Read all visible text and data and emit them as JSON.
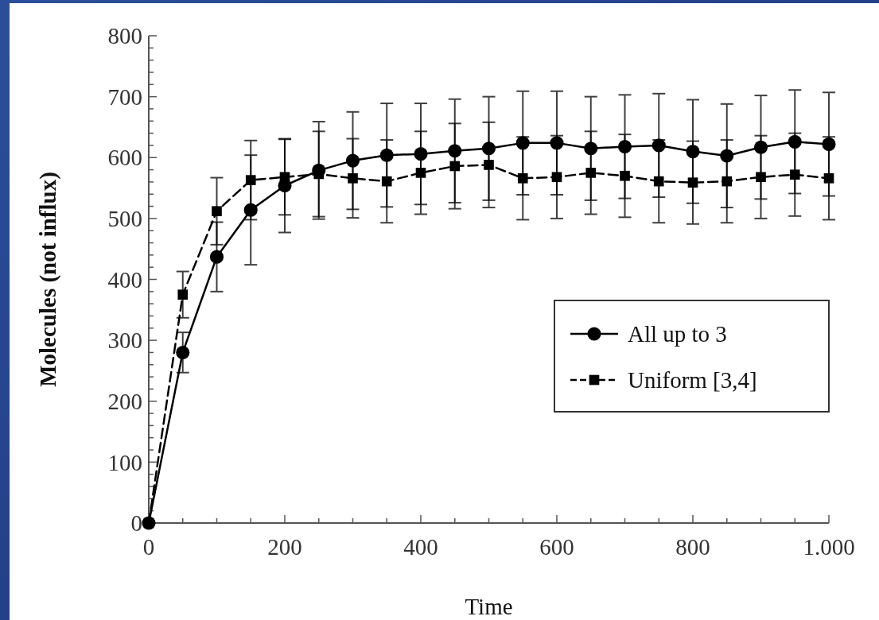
{
  "chart_data": {
    "type": "line",
    "xlabel": "Time",
    "ylabel": "Molecules (not influx)",
    "x": [
      0,
      50,
      100,
      150,
      200,
      250,
      300,
      350,
      400,
      450,
      500,
      550,
      600,
      650,
      700,
      750,
      800,
      850,
      900,
      950,
      1000
    ],
    "xlim": [
      0,
      1000
    ],
    "xticks": [
      0,
      {
        "value": 50,
        "label": null
      },
      {
        "value": 100,
        "label": null
      },
      {
        "value": 150,
        "label": null
      },
      200,
      {
        "value": 250,
        "label": null
      },
      {
        "value": 300,
        "label": null
      },
      {
        "value": 350,
        "label": null
      },
      400,
      {
        "value": 450,
        "label": null
      },
      {
        "value": 500,
        "label": null
      },
      {
        "value": 550,
        "label": null
      },
      600,
      {
        "value": 650,
        "label": null
      },
      {
        "value": 700,
        "label": null
      },
      {
        "value": 750,
        "label": null
      },
      800,
      {
        "value": 850,
        "label": null
      },
      {
        "value": 900,
        "label": null
      },
      {
        "value": 950,
        "label": null
      },
      {
        "value": 1000,
        "label": "1.000"
      }
    ],
    "ylim": [
      0,
      800
    ],
    "yticks": [
      0,
      {
        "value": 20,
        "label": null
      },
      {
        "value": 40,
        "label": null
      },
      {
        "value": 60,
        "label": null
      },
      {
        "value": 80,
        "label": null
      },
      100,
      {
        "value": 120,
        "label": null
      },
      {
        "value": 140,
        "label": null
      },
      {
        "value": 160,
        "label": null
      },
      {
        "value": 180,
        "label": null
      },
      200,
      {
        "value": 220,
        "label": null
      },
      {
        "value": 240,
        "label": null
      },
      {
        "value": 260,
        "label": null
      },
      {
        "value": 280,
        "label": null
      },
      300,
      {
        "value": 320,
        "label": null
      },
      {
        "value": 340,
        "label": null
      },
      {
        "value": 360,
        "label": null
      },
      {
        "value": 380,
        "label": null
      },
      400,
      {
        "value": 420,
        "label": null
      },
      {
        "value": 440,
        "label": null
      },
      {
        "value": 460,
        "label": null
      },
      {
        "value": 480,
        "label": null
      },
      500,
      {
        "value": 520,
        "label": null
      },
      {
        "value": 540,
        "label": null
      },
      {
        "value": 560,
        "label": null
      },
      {
        "value": 580,
        "label": null
      },
      600,
      {
        "value": 620,
        "label": null
      },
      {
        "value": 640,
        "label": null
      },
      {
        "value": 660,
        "label": null
      },
      {
        "value": 680,
        "label": null
      },
      700,
      {
        "value": 720,
        "label": null
      },
      {
        "value": 740,
        "label": null
      },
      {
        "value": 760,
        "label": null
      },
      {
        "value": 780,
        "label": null
      },
      800
    ],
    "legend": "bottom right",
    "series": [
      {
        "name": "All up to 3",
        "color": "#000000",
        "marker": "circle",
        "line_style": "solid",
        "values": [
          0,
          280,
          437,
          514,
          554,
          579,
          595,
          604,
          606,
          611,
          615,
          624,
          624,
          615,
          618,
          620,
          610,
          603,
          617,
          626,
          622
        ],
        "errors": [
          null,
          33,
          57,
          90,
          77,
          80,
          80,
          85,
          83,
          85,
          85,
          85,
          85,
          85,
          85,
          85,
          85,
          85,
          85,
          85,
          85
        ]
      },
      {
        "name": "Uniform [3,4]",
        "color": "#000000",
        "marker": "square",
        "line_style": "dashed",
        "values": [
          0,
          375,
          512,
          563,
          568,
          573,
          566,
          561,
          575,
          586,
          588,
          566,
          568,
          575,
          570,
          561,
          559,
          561,
          568,
          572,
          566
        ],
        "errors": [
          null,
          38,
          55,
          65,
          62,
          70,
          65,
          68,
          68,
          70,
          70,
          68,
          68,
          68,
          68,
          68,
          68,
          68,
          68,
          68,
          68
        ]
      }
    ]
  }
}
